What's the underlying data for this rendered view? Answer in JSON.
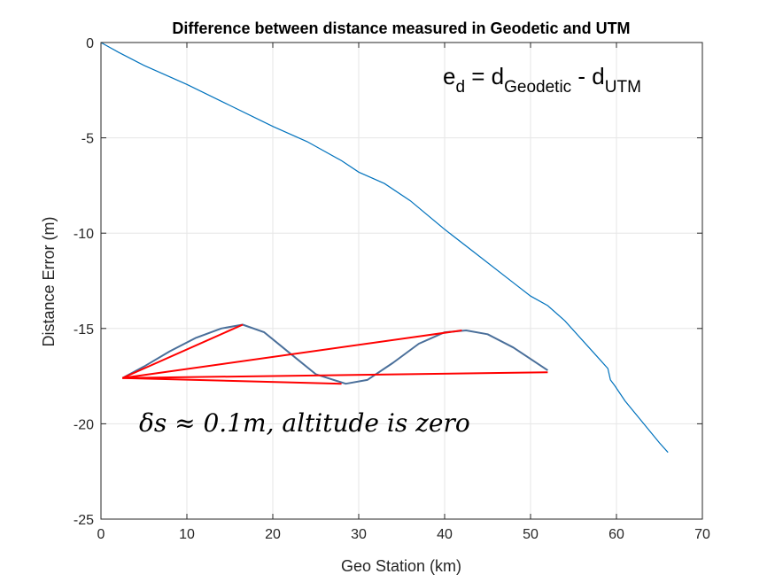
{
  "chart_data": {
    "type": "line",
    "title": "Difference between distance measured in Geodetic and UTM",
    "xlabel": "Geo Station (km)",
    "ylabel": "Distance Error (m)",
    "xlim": [
      0,
      70
    ],
    "ylim": [
      -25,
      0
    ],
    "xticks": [
      0,
      10,
      20,
      30,
      40,
      50,
      60,
      70
    ],
    "yticks": [
      0,
      -5,
      -10,
      -15,
      -20,
      -25
    ],
    "grid": true,
    "series": [
      {
        "color": "#0072BD",
        "x": [
          0,
          2,
          5,
          10,
          15,
          20,
          24,
          28,
          30,
          33,
          36,
          40,
          44,
          48,
          50,
          52,
          54,
          56,
          58,
          59,
          59.3,
          59.8,
          61,
          63,
          65,
          66
        ],
        "y": [
          0,
          -0.5,
          -1.2,
          -2.2,
          -3.3,
          -4.4,
          -5.2,
          -6.2,
          -6.8,
          -7.4,
          -8.3,
          -9.8,
          -11.2,
          -12.6,
          -13.3,
          -13.8,
          -14.6,
          -15.6,
          -16.6,
          -17.1,
          -17.7,
          -18.0,
          -18.8,
          -19.9,
          -21.0,
          -21.5
        ]
      }
    ],
    "annotations": {
      "formula": {
        "parts": [
          "e",
          "d",
          " = d",
          "Geodetic",
          " - d",
          "UTM"
        ]
      },
      "note": "δs ≈ 0.1m, altitude is zero",
      "inset": {
        "wave_color": "#4A6F9A",
        "chord_color": "#FF0000",
        "wave_x": [
          2.5,
          5,
          8,
          11,
          14,
          16.5,
          19,
          22,
          25,
          28.5,
          31,
          34,
          37,
          40,
          42.5,
          45,
          48,
          50,
          52
        ],
        "wave_y": [
          -17.6,
          -17.0,
          -16.2,
          -15.5,
          -15.0,
          -14.8,
          -15.2,
          -16.3,
          -17.4,
          -17.9,
          -17.7,
          -16.8,
          -15.8,
          -15.2,
          -15.1,
          -15.3,
          -16.0,
          -16.6,
          -17.2
        ],
        "chords": [
          [
            [
              2.5,
              -17.6
            ],
            [
              16.5,
              -14.8
            ]
          ],
          [
            [
              2.5,
              -17.6
            ],
            [
              42.0,
              -15.1
            ]
          ],
          [
            [
              2.5,
              -17.6
            ],
            [
              28.0,
              -17.9
            ]
          ],
          [
            [
              2.5,
              -17.6
            ],
            [
              52.0,
              -17.3
            ]
          ]
        ]
      }
    }
  }
}
